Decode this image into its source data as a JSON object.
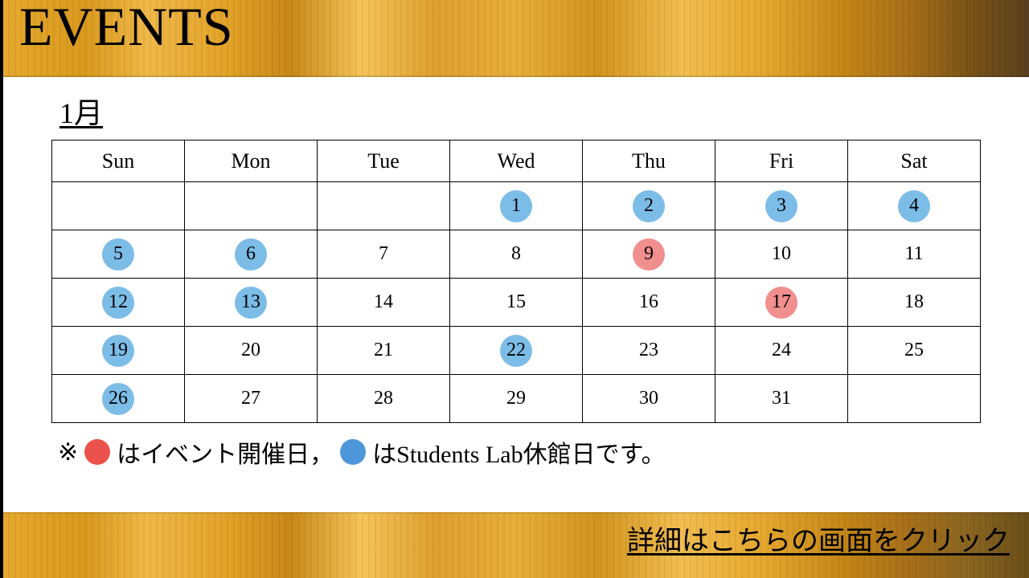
{
  "header": {
    "title": "EVENTS"
  },
  "calendar": {
    "month_label": "1月",
    "day_headers": [
      "Sun",
      "Mon",
      "Tue",
      "Wed",
      "Thu",
      "Fri",
      "Sat"
    ],
    "weeks": [
      [
        {
          "day": "",
          "mark": null
        },
        {
          "day": "",
          "mark": null
        },
        {
          "day": "",
          "mark": null
        },
        {
          "day": "1",
          "mark": "closed"
        },
        {
          "day": "2",
          "mark": "closed"
        },
        {
          "day": "3",
          "mark": "closed"
        },
        {
          "day": "4",
          "mark": "closed"
        }
      ],
      [
        {
          "day": "5",
          "mark": "closed"
        },
        {
          "day": "6",
          "mark": "closed"
        },
        {
          "day": "7",
          "mark": null
        },
        {
          "day": "8",
          "mark": null
        },
        {
          "day": "9",
          "mark": "event"
        },
        {
          "day": "10",
          "mark": null
        },
        {
          "day": "11",
          "mark": null
        }
      ],
      [
        {
          "day": "12",
          "mark": "closed"
        },
        {
          "day": "13",
          "mark": "closed"
        },
        {
          "day": "14",
          "mark": null
        },
        {
          "day": "15",
          "mark": null
        },
        {
          "day": "16",
          "mark": null
        },
        {
          "day": "17",
          "mark": "event"
        },
        {
          "day": "18",
          "mark": null
        }
      ],
      [
        {
          "day": "19",
          "mark": "closed"
        },
        {
          "day": "20",
          "mark": null
        },
        {
          "day": "21",
          "mark": null
        },
        {
          "day": "22",
          "mark": "closed"
        },
        {
          "day": "23",
          "mark": null
        },
        {
          "day": "24",
          "mark": null
        },
        {
          "day": "25",
          "mark": null
        }
      ],
      [
        {
          "day": "26",
          "mark": "closed"
        },
        {
          "day": "27",
          "mark": null
        },
        {
          "day": "28",
          "mark": null
        },
        {
          "day": "29",
          "mark": null
        },
        {
          "day": "30",
          "mark": null
        },
        {
          "day": "31",
          "mark": null
        },
        {
          "day": "",
          "mark": null
        }
      ]
    ],
    "colors": {
      "event": "#f18f8f",
      "closed": "#7cbde8",
      "event_dot": "#eb524d",
      "closed_dot": "#4d96d9"
    }
  },
  "legend": {
    "prefix": "※",
    "event_text": "はイベント開催日，",
    "closed_text": "はStudents Lab休館日です。"
  },
  "footer": {
    "link_text": "詳細はこちらの画面をクリック"
  }
}
